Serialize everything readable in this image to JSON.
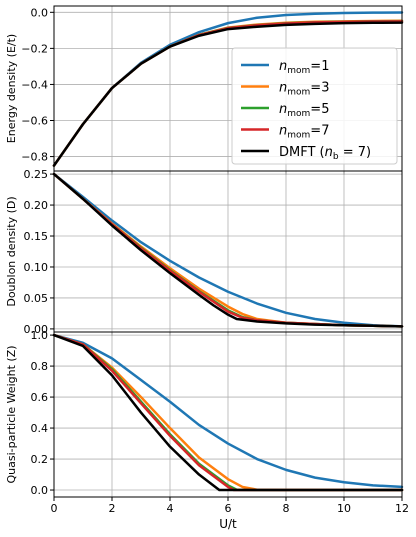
{
  "chart_data": {
    "type": "line",
    "x_axis": {
      "label": "U/t",
      "range": [
        0,
        12
      ],
      "ticks": [
        0,
        2,
        4,
        6,
        8,
        10,
        12
      ]
    },
    "grid": true,
    "legend": {
      "placement": "top panel, right",
      "entries": [
        {
          "key": "n1",
          "base": "n",
          "sub": "mom",
          "suffix": "=1",
          "color": "#1f77b4"
        },
        {
          "key": "n3",
          "base": "n",
          "sub": "mom",
          "suffix": "=3",
          "color": "#ff7f0e"
        },
        {
          "key": "n5",
          "base": "n",
          "sub": "mom",
          "suffix": "=5",
          "color": "#2ca02c"
        },
        {
          "key": "n7",
          "base": "n",
          "sub": "mom",
          "suffix": "=7",
          "color": "#d62728"
        },
        {
          "key": "dmft",
          "prefix": "DMFT (",
          "base": "n",
          "sub": "b",
          "suffix": " = 7)",
          "color": "#000000"
        }
      ]
    },
    "panels": [
      {
        "id": "energy",
        "ylabel": "Energy density (E/t)",
        "ylim": [
          -0.88,
          0.035
        ],
        "ticks": [
          0.0,
          -0.2,
          -0.4,
          -0.6,
          -0.8
        ],
        "tick_labels": [
          "0.0",
          "−0.2",
          "−0.4",
          "−0.6",
          "−0.8"
        ],
        "series": [
          {
            "key": "n1",
            "x": [
              0,
              1,
              2,
              3,
              4,
              5,
              6,
              7,
              8,
              9,
              10,
              11,
              12
            ],
            "y": [
              -0.85,
              -0.62,
              -0.42,
              -0.28,
              -0.18,
              -0.11,
              -0.06,
              -0.03,
              -0.015,
              -0.008,
              -0.004,
              -0.002,
              -0.001
            ]
          },
          {
            "key": "n3",
            "x": [
              0,
              1,
              2,
              3,
              4,
              5,
              6,
              7,
              8,
              9,
              10,
              11,
              12
            ],
            "y": [
              -0.85,
              -0.62,
              -0.42,
              -0.285,
              -0.19,
              -0.125,
              -0.085,
              -0.068,
              -0.058,
              -0.052,
              -0.05,
              -0.048,
              -0.047
            ]
          },
          {
            "key": "n5",
            "x": [
              0,
              1,
              2,
              3,
              4,
              5,
              6,
              7,
              8,
              9,
              10,
              11,
              12
            ],
            "y": [
              -0.85,
              -0.62,
              -0.42,
              -0.285,
              -0.19,
              -0.125,
              -0.087,
              -0.071,
              -0.061,
              -0.055,
              -0.052,
              -0.05,
              -0.049
            ]
          },
          {
            "key": "n7",
            "x": [
              0,
              1,
              2,
              3,
              4,
              5,
              6,
              7,
              8,
              9,
              10,
              11,
              12
            ],
            "y": [
              -0.85,
              -0.62,
              -0.42,
              -0.285,
              -0.19,
              -0.126,
              -0.088,
              -0.072,
              -0.062,
              -0.056,
              -0.053,
              -0.051,
              -0.05
            ]
          },
          {
            "key": "dmft",
            "x": [
              0,
              1,
              2,
              3,
              4,
              5,
              6,
              7,
              8,
              9,
              10,
              11,
              12
            ],
            "y": [
              -0.85,
              -0.62,
              -0.42,
              -0.285,
              -0.19,
              -0.13,
              -0.093,
              -0.08,
              -0.07,
              -0.064,
              -0.06,
              -0.058,
              -0.057
            ]
          }
        ]
      },
      {
        "id": "doublon",
        "ylabel": "Doublon density (D)",
        "ylim": [
          -0.005,
          0.255
        ],
        "ticks": [
          0.0,
          0.05,
          0.1,
          0.15,
          0.2,
          0.25
        ],
        "tick_labels": [
          "0.00",
          "0.05",
          "0.10",
          "0.15",
          "0.20",
          "0.25"
        ],
        "series": [
          {
            "key": "n1",
            "x": [
              0,
              1,
              2,
              3,
              4,
              5,
              6,
              7,
              8,
              9,
              10,
              11,
              12
            ],
            "y": [
              0.25,
              0.213,
              0.175,
              0.14,
              0.11,
              0.083,
              0.06,
              0.041,
              0.026,
              0.016,
              0.01,
              0.006,
              0.004
            ]
          },
          {
            "key": "n3",
            "x": [
              0,
              1,
              2,
              3,
              4,
              5,
              6,
              6.5,
              7,
              8,
              9,
              10,
              11,
              12
            ],
            "y": [
              0.25,
              0.21,
              0.17,
              0.133,
              0.098,
              0.065,
              0.036,
              0.024,
              0.016,
              0.01,
              0.008,
              0.006,
              0.005,
              0.004
            ]
          },
          {
            "key": "n5",
            "x": [
              0,
              1,
              2,
              3,
              4,
              5,
              6,
              6.5,
              7,
              8,
              9,
              10,
              11,
              12
            ],
            "y": [
              0.25,
              0.21,
              0.169,
              0.131,
              0.095,
              0.061,
              0.03,
              0.019,
              0.014,
              0.01,
              0.008,
              0.006,
              0.005,
              0.004
            ]
          },
          {
            "key": "n7",
            "x": [
              0,
              1,
              2,
              3,
              4,
              5,
              6,
              6.5,
              7,
              8,
              9,
              10,
              11,
              12
            ],
            "y": [
              0.25,
              0.21,
              0.169,
              0.13,
              0.094,
              0.06,
              0.028,
              0.018,
              0.014,
              0.01,
              0.008,
              0.006,
              0.005,
              0.004
            ]
          },
          {
            "key": "dmft",
            "x": [
              0,
              1,
              2,
              3,
              4,
              5,
              5.5,
              6,
              6.3,
              7,
              8,
              9,
              10,
              11,
              12
            ],
            "y": [
              0.25,
              0.21,
              0.167,
              0.127,
              0.09,
              0.055,
              0.038,
              0.023,
              0.016,
              0.012,
              0.009,
              0.007,
              0.006,
              0.005,
              0.004
            ]
          }
        ]
      },
      {
        "id": "qpweight",
        "ylabel": "Quasi-particle Weight (Z)",
        "ylim": [
          -0.045,
          1.02
        ],
        "ticks": [
          0.0,
          0.2,
          0.4,
          0.6,
          0.8,
          1.0
        ],
        "tick_labels": [
          "0.0",
          "0.2",
          "0.4",
          "0.6",
          "0.8",
          "1.0"
        ],
        "series": [
          {
            "key": "n1",
            "x": [
              0,
              1,
              2,
              3,
              4,
              5,
              6,
              7,
              8,
              9,
              10,
              11,
              12
            ],
            "y": [
              1.0,
              0.95,
              0.85,
              0.71,
              0.57,
              0.42,
              0.3,
              0.2,
              0.13,
              0.08,
              0.05,
              0.03,
              0.02
            ]
          },
          {
            "key": "n3",
            "x": [
              0,
              1,
              2,
              3,
              4,
              5,
              6,
              6.5,
              7,
              8,
              9,
              10,
              11,
              12
            ],
            "y": [
              1.0,
              0.94,
              0.79,
              0.6,
              0.4,
              0.21,
              0.07,
              0.02,
              0.002,
              0,
              0,
              0,
              0,
              0
            ]
          },
          {
            "key": "n5",
            "x": [
              0,
              1,
              2,
              3,
              4,
              5,
              6,
              6.3,
              7,
              8,
              9,
              10,
              11,
              12
            ],
            "y": [
              1.0,
              0.94,
              0.78,
              0.57,
              0.36,
              0.17,
              0.03,
              0.002,
              0,
              0,
              0,
              0,
              0,
              0
            ]
          },
          {
            "key": "n7",
            "x": [
              0,
              1,
              2,
              3,
              4,
              5,
              6,
              6.2,
              7,
              8,
              9,
              10,
              11,
              12
            ],
            "y": [
              1.0,
              0.94,
              0.77,
              0.56,
              0.35,
              0.16,
              0.02,
              0,
              0,
              0,
              0,
              0,
              0,
              0
            ]
          },
          {
            "key": "dmft",
            "x": [
              0,
              1,
              2,
              3,
              4,
              5,
              5.7,
              6,
              7,
              8,
              9,
              10,
              11,
              12
            ],
            "y": [
              1.0,
              0.93,
              0.74,
              0.5,
              0.28,
              0.1,
              0.0,
              0,
              0,
              0,
              0,
              0,
              0,
              0
            ]
          }
        ]
      }
    ]
  }
}
